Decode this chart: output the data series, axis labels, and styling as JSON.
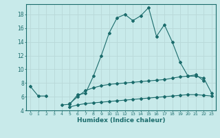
{
  "xlabel": "Humidex (Indice chaleur)",
  "x": [
    0,
    1,
    2,
    3,
    4,
    5,
    6,
    7,
    8,
    9,
    10,
    11,
    12,
    13,
    14,
    15,
    16,
    17,
    18,
    19,
    20,
    21,
    22,
    23
  ],
  "line1": [
    7.5,
    6.1,
    6.1,
    null,
    4.8,
    4.9,
    6.3,
    6.5,
    9.0,
    12.0,
    15.3,
    17.5,
    18.0,
    17.1,
    17.8,
    19.0,
    14.8,
    16.5,
    14.0,
    11.0,
    9.0,
    9.2,
    8.3,
    null
  ],
  "line2": [
    null,
    null,
    null,
    null,
    null,
    5.0,
    6.0,
    6.9,
    7.3,
    7.6,
    7.8,
    7.9,
    8.0,
    8.1,
    8.2,
    8.3,
    8.4,
    8.5,
    8.7,
    8.9,
    9.0,
    9.0,
    8.7,
    6.5
  ],
  "line3": [
    null,
    null,
    null,
    null,
    null,
    4.5,
    4.8,
    5.0,
    5.1,
    5.2,
    5.3,
    5.4,
    5.5,
    5.6,
    5.7,
    5.8,
    5.9,
    6.0,
    6.1,
    6.2,
    6.3,
    6.3,
    6.2,
    6.1
  ],
  "line_color": "#1a6b6b",
  "bg_color": "#c8eaea",
  "grid_color": "#b8d8d8",
  "ylim": [
    4,
    19
  ],
  "yticks": [
    4,
    6,
    8,
    10,
    12,
    14,
    16,
    18
  ],
  "xlim": [
    -0.5,
    23.5
  ]
}
